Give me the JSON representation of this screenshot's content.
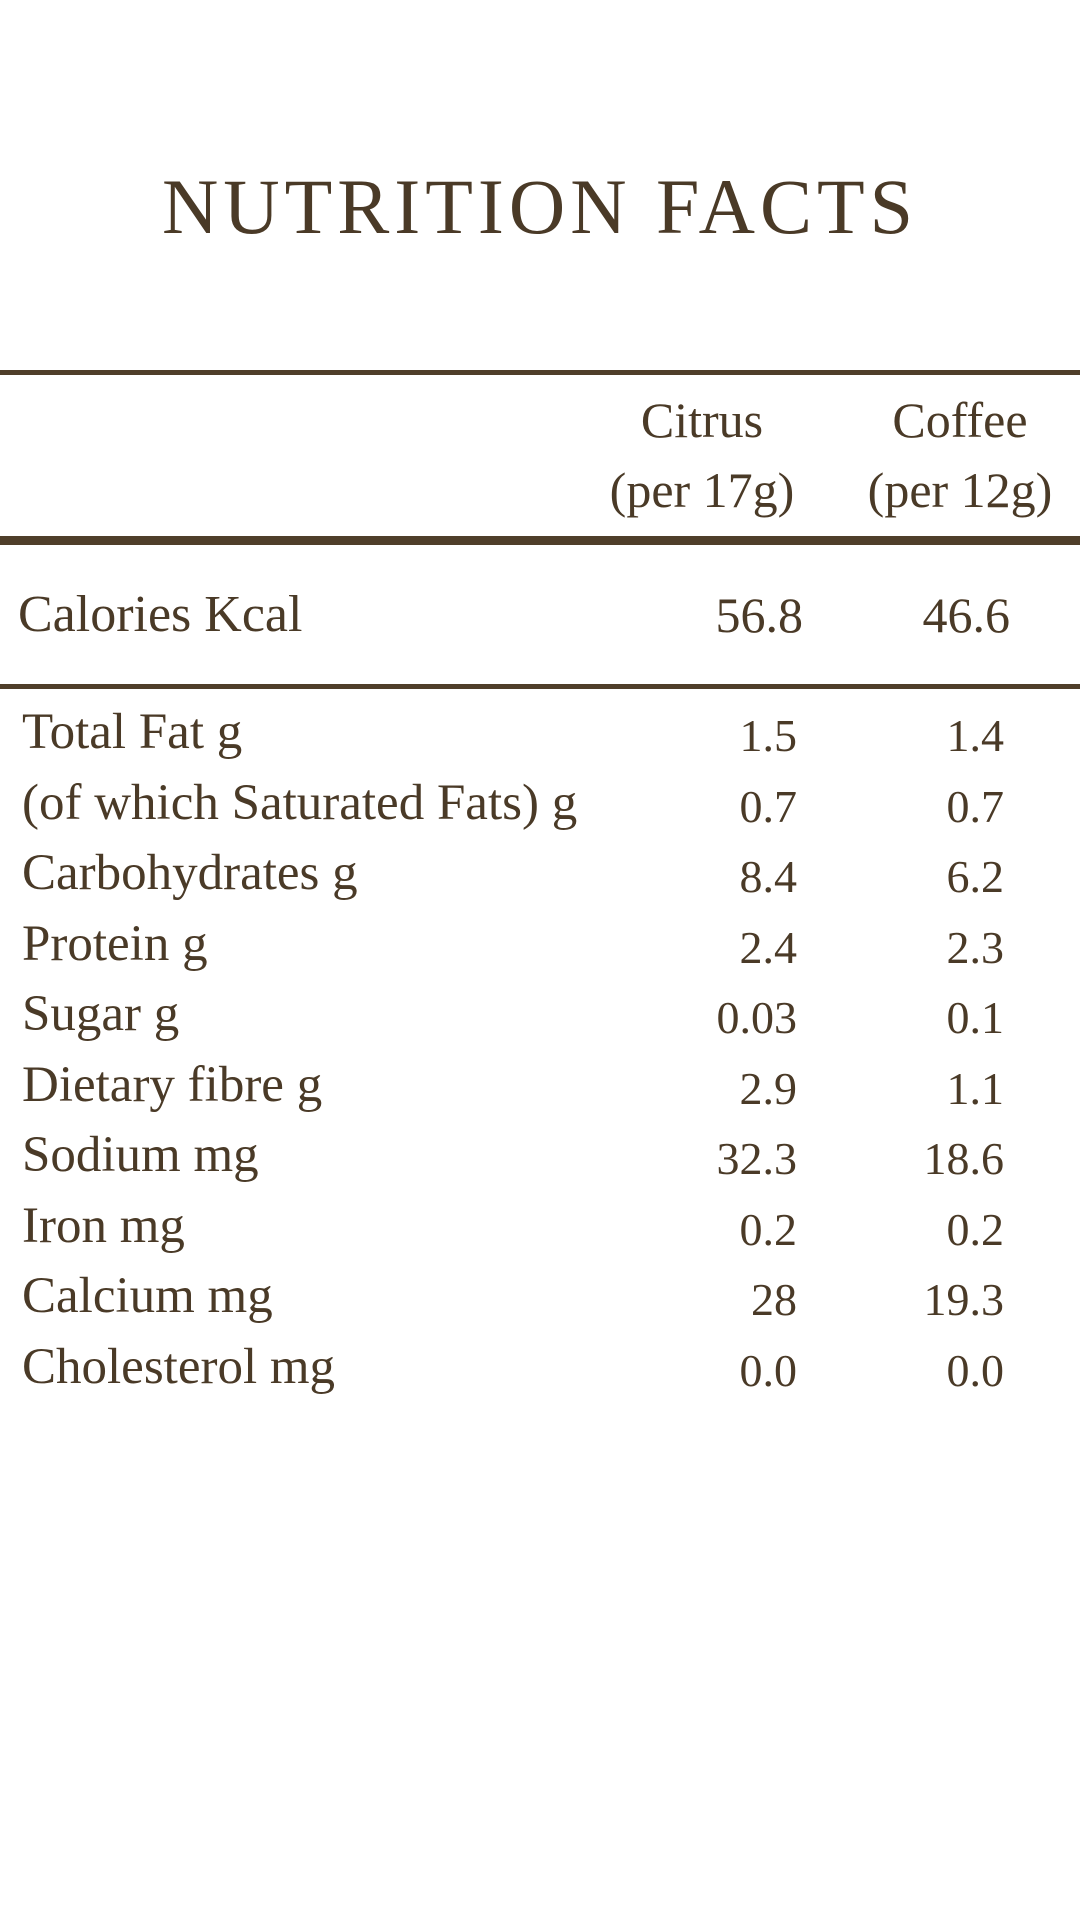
{
  "title": "NUTRITION FACTS",
  "columns": [
    {
      "name": "Citrus",
      "serving": "(per 17g)"
    },
    {
      "name": "Coffee",
      "serving": "(per 12g)"
    }
  ],
  "calories": {
    "label": "Calories Kcal",
    "citrus": "56.8",
    "coffee": "46.6"
  },
  "nutrients": [
    {
      "label": "Total Fat g",
      "citrus": "1.5",
      "coffee": "1.4"
    },
    {
      "label": "(of which Saturated Fats) g",
      "citrus": "0.7",
      "coffee": "0.7"
    },
    {
      "label": "Carbohydrates g",
      "citrus": "8.4",
      "coffee": "6.2"
    },
    {
      "label": "Protein g",
      "citrus": "2.4",
      "coffee": "2.3"
    },
    {
      "label": "Sugar g",
      "citrus": "0.03",
      "coffee": "0.1"
    },
    {
      "label": "Dietary fibre g",
      "citrus": "2.9",
      "coffee": "1.1"
    },
    {
      "label": "Sodium mg",
      "citrus": "32.3",
      "coffee": "18.6"
    },
    {
      "label": "Iron mg",
      "citrus": "0.2",
      "coffee": "0.2"
    },
    {
      "label": "Calcium mg",
      "citrus": "28",
      "coffee": "19.3"
    },
    {
      "label": "Cholesterol mg",
      "citrus": "0.0",
      "coffee": "0.0"
    }
  ],
  "colors": {
    "text": "#4a3a27",
    "rule": "#4f3e2a",
    "background": "#ffffff"
  }
}
